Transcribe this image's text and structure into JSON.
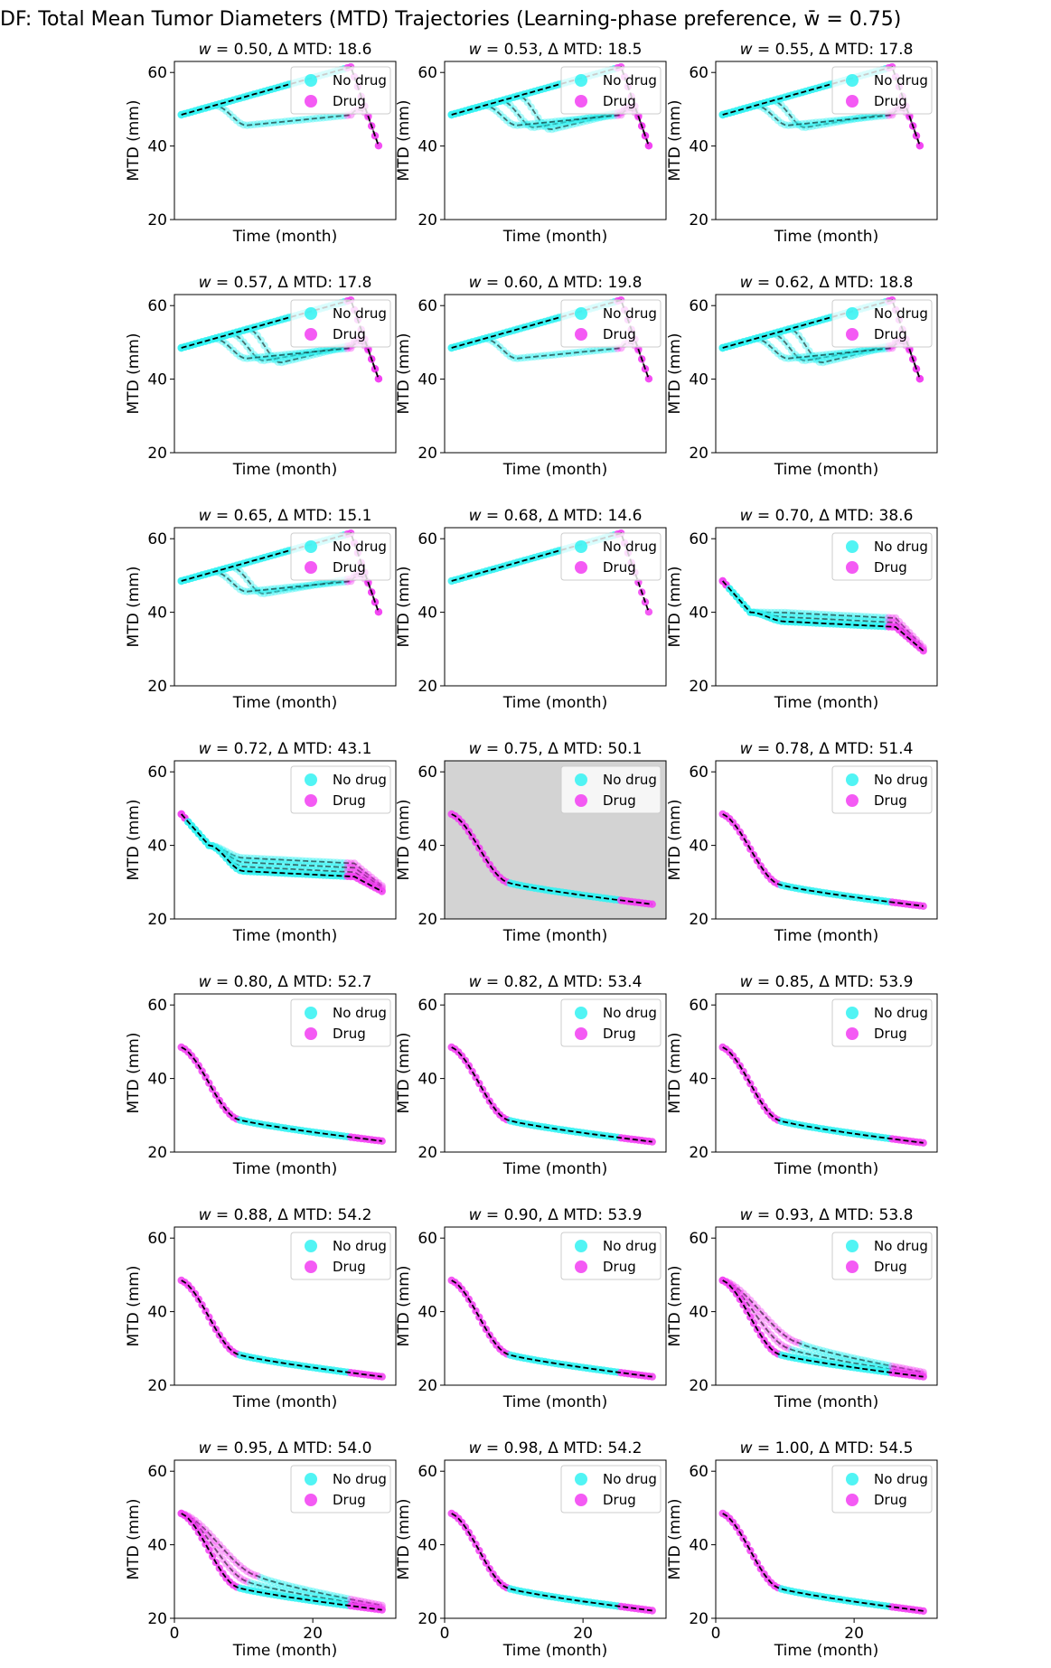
{
  "figure": {
    "title": "DF: Total Mean Tumor Diameters (MTD) Trajectories (Learning-phase preference, w̄ = 0.75)",
    "highlight_color": "#d3d3d3",
    "nodrug_color": "#33f2f2",
    "drug_color": "#f23df2",
    "line_color": "#000000"
  },
  "chart_data": {
    "type": "scatter",
    "xlabel": "Time (month)",
    "ylabel": "MTD (mm)",
    "xlim": [
      0,
      32
    ],
    "ylim": [
      20,
      63
    ],
    "yticks": [
      20,
      40,
      60
    ],
    "xticks": [
      0,
      20
    ],
    "legend": {
      "placement": "top-right",
      "entries": [
        "No drug",
        "Drug"
      ]
    },
    "highlighted_w": "0.75",
    "panels": [
      {
        "w": "0.50",
        "delta": "18.6",
        "group": "A",
        "n_traj": 2,
        "amp": 1.0
      },
      {
        "w": "0.53",
        "delta": "18.5",
        "group": "A",
        "n_traj": 4,
        "amp": 1.0
      },
      {
        "w": "0.55",
        "delta": "17.8",
        "group": "A",
        "n_traj": 3,
        "amp": 1.0
      },
      {
        "w": "0.57",
        "delta": "17.8",
        "group": "A",
        "n_traj": 4,
        "amp": 1.0
      },
      {
        "w": "0.60",
        "delta": "19.8",
        "group": "A",
        "n_traj": 2,
        "amp": 1.0
      },
      {
        "w": "0.62",
        "delta": "18.8",
        "group": "A",
        "n_traj": 4,
        "amp": 1.0
      },
      {
        "w": "0.65",
        "delta": "15.1",
        "group": "A",
        "n_traj": 3,
        "amp": 1.0
      },
      {
        "w": "0.68",
        "delta": "14.6",
        "group": "A",
        "n_traj": 1,
        "amp": 1.0
      },
      {
        "w": "0.70",
        "delta": "38.6",
        "group": "B",
        "n_traj": 3,
        "amp": 1.0,
        "plateau": 36,
        "end": 29.5
      },
      {
        "w": "0.72",
        "delta": "43.1",
        "group": "B",
        "n_traj": 4,
        "amp": 1.0,
        "plateau": 31.5,
        "end": 27.5
      },
      {
        "w": "0.75",
        "delta": "50.1",
        "group": "C",
        "n_traj": 1,
        "amp": 0.0,
        "plateau": 27.5,
        "end": 24
      },
      {
        "w": "0.78",
        "delta": "51.4",
        "group": "C",
        "n_traj": 1,
        "amp": 0.0,
        "plateau": 27,
        "end": 23.5
      },
      {
        "w": "0.80",
        "delta": "52.7",
        "group": "C",
        "n_traj": 1,
        "amp": 0.0,
        "plateau": 26.5,
        "end": 23
      },
      {
        "w": "0.82",
        "delta": "53.4",
        "group": "C",
        "n_traj": 1,
        "amp": 0.0,
        "plateau": 26.3,
        "end": 22.8
      },
      {
        "w": "0.85",
        "delta": "53.9",
        "group": "C",
        "n_traj": 1,
        "amp": 0.0,
        "plateau": 26.2,
        "end": 22.5
      },
      {
        "w": "0.88",
        "delta": "54.2",
        "group": "C",
        "n_traj": 1,
        "amp": 0.0,
        "plateau": 26.0,
        "end": 22.3
      },
      {
        "w": "0.90",
        "delta": "53.9",
        "group": "C",
        "n_traj": 1,
        "amp": 0.0,
        "plateau": 26.0,
        "end": 22.3
      },
      {
        "w": "0.93",
        "delta": "53.8",
        "group": "C",
        "n_traj": 3,
        "amp": 1.0,
        "plateau": 26.0,
        "end": 22.3
      },
      {
        "w": "0.95",
        "delta": "54.0",
        "group": "C",
        "n_traj": 3,
        "amp": 1.0,
        "plateau": 26.0,
        "end": 22.3
      },
      {
        "w": "0.98",
        "delta": "54.2",
        "group": "C",
        "n_traj": 1,
        "amp": 0.0,
        "plateau": 25.8,
        "end": 22.1
      },
      {
        "w": "1.00",
        "delta": "54.5",
        "group": "C",
        "n_traj": 1,
        "amp": 0.0,
        "plateau": 25.8,
        "end": 22.0
      }
    ]
  }
}
